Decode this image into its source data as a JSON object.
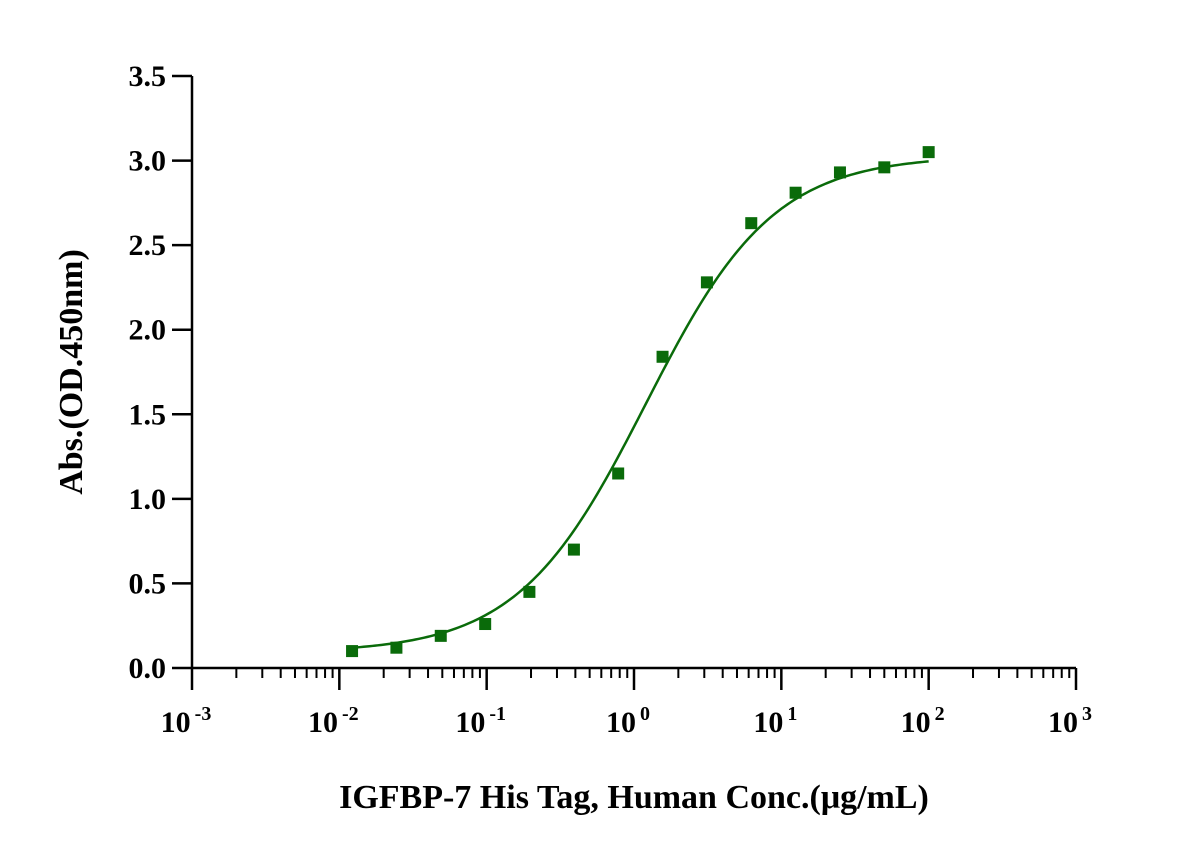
{
  "chart_data": {
    "type": "scatter",
    "xlabel": "IGFBP-7 His Tag, Human Conc.(μg/mL)",
    "ylabel": "Abs.(OD.450nm)",
    "x_scale": "log",
    "xlim": [
      0.001,
      1000
    ],
    "ylim": [
      0,
      3.5
    ],
    "x_ticks": [
      {
        "value": 0.001,
        "base": "10",
        "exp": "-3"
      },
      {
        "value": 0.01,
        "base": "10",
        "exp": "-2"
      },
      {
        "value": 0.1,
        "base": "10",
        "exp": "-1"
      },
      {
        "value": 1,
        "base": "10",
        "exp": "0"
      },
      {
        "value": 10,
        "base": "10",
        "exp": "1"
      },
      {
        "value": 100,
        "base": "10",
        "exp": "2"
      },
      {
        "value": 1000,
        "base": "10",
        "exp": "3"
      }
    ],
    "y_ticks": [
      {
        "value": 0,
        "label": "0.0"
      },
      {
        "value": 0.5,
        "label": "0.5"
      },
      {
        "value": 1.0,
        "label": "1.0"
      },
      {
        "value": 1.5,
        "label": "1.5"
      },
      {
        "value": 2.0,
        "label": "2.0"
      },
      {
        "value": 2.5,
        "label": "2.5"
      },
      {
        "value": 3.0,
        "label": "3.0"
      },
      {
        "value": 3.5,
        "label": "3.5"
      }
    ],
    "grid": false,
    "marker": "square",
    "color": "#0a6b0a",
    "series": [
      {
        "x": [
          0.0122,
          0.0244,
          0.0488,
          0.0977,
          0.195,
          0.391,
          0.781,
          1.5625,
          3.125,
          6.25,
          12.5,
          25,
          50,
          100
        ],
        "y": [
          0.1,
          0.12,
          0.19,
          0.26,
          0.45,
          0.7,
          1.15,
          1.84,
          2.28,
          2.63,
          2.81,
          2.93,
          2.96,
          3.05
        ]
      }
    ],
    "fit": {
      "type": "4PL",
      "bottom": 0.09,
      "top": 3.03,
      "ec50": 1.2,
      "hill": 1.0
    }
  }
}
